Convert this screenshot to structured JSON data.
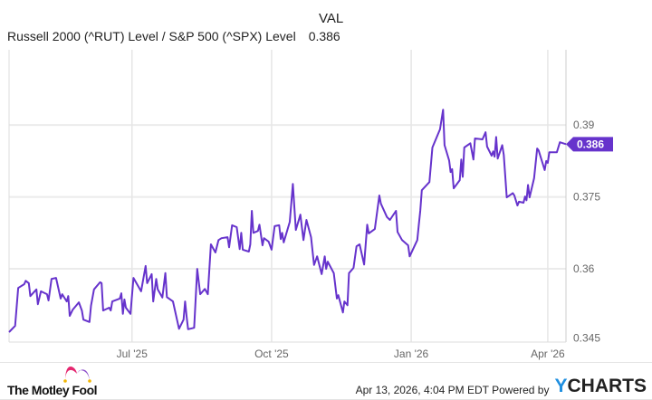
{
  "header": {
    "column_label": "VAL",
    "series_name": "Russell 2000 (^RUT) Level / S&P 500 (^SPX) Level",
    "series_value": "0.386"
  },
  "footer": {
    "brand": "The Motley Fool",
    "timestamp": "Apr 13, 2026, 4:04 PM EDT",
    "powered_by": "Powered by",
    "ycharts_y": "Y",
    "ycharts_rest": "CHARTS"
  },
  "chart_data": {
    "type": "line",
    "title": "",
    "xlabel": "",
    "ylabel": "",
    "line_color": "#6633cc",
    "grid": true,
    "y_axis_side": "right",
    "xlim": [
      "2025-04-11",
      "2026-04-13"
    ],
    "ylim": [
      0.345,
      0.4057
    ],
    "x_ticks": [
      {
        "date": "2025-07-01",
        "label": "Jul '25"
      },
      {
        "date": "2025-10-01",
        "label": "Oct '25"
      },
      {
        "date": "2026-01-01",
        "label": "Jan '26"
      },
      {
        "date": "2026-04-01",
        "label": "Apr '26"
      }
    ],
    "y_ticks": [
      {
        "value": 0.345,
        "label": "0.345"
      },
      {
        "value": 0.36,
        "label": "0.36"
      },
      {
        "value": 0.375,
        "label": "0.375"
      },
      {
        "value": 0.39,
        "label": "0.39"
      }
    ],
    "last_value_label": "0.386",
    "series": [
      {
        "name": "Russell 2000 (^RUT) Level / S&P 500 (^SPX) Level",
        "points": [
          [
            "2025-04-11",
            0.3468
          ],
          [
            "2025-04-15",
            0.3481
          ],
          [
            "2025-04-17",
            0.356
          ],
          [
            "2025-04-21",
            0.3568
          ],
          [
            "2025-04-22",
            0.3575
          ],
          [
            "2025-04-24",
            0.357
          ],
          [
            "2025-04-25",
            0.3543
          ],
          [
            "2025-04-29",
            0.3557
          ],
          [
            "2025-04-30",
            0.3526
          ],
          [
            "2025-05-02",
            0.3553
          ],
          [
            "2025-05-06",
            0.3547
          ],
          [
            "2025-05-07",
            0.3534
          ],
          [
            "2025-05-09",
            0.3579
          ],
          [
            "2025-05-12",
            0.3581
          ],
          [
            "2025-05-15",
            0.3538
          ],
          [
            "2025-05-16",
            0.3547
          ],
          [
            "2025-05-19",
            0.3532
          ],
          [
            "2025-05-20",
            0.3543
          ],
          [
            "2025-05-21",
            0.3502
          ],
          [
            "2025-05-23",
            0.3515
          ],
          [
            "2025-05-27",
            0.353
          ],
          [
            "2025-05-29",
            0.3513
          ],
          [
            "2025-05-30",
            0.3494
          ],
          [
            "2025-06-03",
            0.3489
          ],
          [
            "2025-06-04",
            0.3523
          ],
          [
            "2025-06-06",
            0.3557
          ],
          [
            "2025-06-10",
            0.3572
          ],
          [
            "2025-06-11",
            0.357
          ],
          [
            "2025-06-12",
            0.3513
          ],
          [
            "2025-06-16",
            0.3519
          ],
          [
            "2025-06-17",
            0.3513
          ],
          [
            "2025-06-18",
            0.3532
          ],
          [
            "2025-06-23",
            0.3538
          ],
          [
            "2025-06-24",
            0.3549
          ],
          [
            "2025-06-25",
            0.3506
          ],
          [
            "2025-06-26",
            0.3536
          ],
          [
            "2025-06-27",
            0.3519
          ],
          [
            "2025-06-30",
            0.3506
          ],
          [
            "2025-07-02",
            0.3581
          ],
          [
            "2025-07-07",
            0.3553
          ],
          [
            "2025-07-10",
            0.3606
          ],
          [
            "2025-07-11",
            0.357
          ],
          [
            "2025-07-14",
            0.3589
          ],
          [
            "2025-07-15",
            0.3532
          ],
          [
            "2025-07-17",
            0.3579
          ],
          [
            "2025-07-18",
            0.3557
          ],
          [
            "2025-07-21",
            0.354
          ],
          [
            "2025-07-23",
            0.3591
          ],
          [
            "2025-07-24",
            0.3541
          ],
          [
            "2025-07-28",
            0.3532
          ],
          [
            "2025-08-01",
            0.3475
          ],
          [
            "2025-08-04",
            0.3494
          ],
          [
            "2025-08-05",
            0.3532
          ],
          [
            "2025-08-06",
            0.35
          ],
          [
            "2025-08-07",
            0.3474
          ],
          [
            "2025-08-11",
            0.3477
          ],
          [
            "2025-08-13",
            0.36
          ],
          [
            "2025-08-15",
            0.3547
          ],
          [
            "2025-08-18",
            0.3558
          ],
          [
            "2025-08-20",
            0.3547
          ],
          [
            "2025-08-22",
            0.3651
          ],
          [
            "2025-08-25",
            0.3634
          ],
          [
            "2025-08-27",
            0.366
          ],
          [
            "2025-08-29",
            0.3664
          ],
          [
            "2025-09-02",
            0.3666
          ],
          [
            "2025-09-03",
            0.3645
          ],
          [
            "2025-09-05",
            0.3691
          ],
          [
            "2025-09-08",
            0.3687
          ],
          [
            "2025-09-10",
            0.3641
          ],
          [
            "2025-09-11",
            0.3675
          ],
          [
            "2025-09-12",
            0.364
          ],
          [
            "2025-09-16",
            0.3636
          ],
          [
            "2025-09-17",
            0.3651
          ],
          [
            "2025-09-18",
            0.3721
          ],
          [
            "2025-09-19",
            0.3675
          ],
          [
            "2025-09-22",
            0.3679
          ],
          [
            "2025-09-23",
            0.3692
          ],
          [
            "2025-09-25",
            0.3649
          ],
          [
            "2025-09-26",
            0.3664
          ],
          [
            "2025-09-29",
            0.3657
          ],
          [
            "2025-10-01",
            0.364
          ],
          [
            "2025-10-03",
            0.3689
          ],
          [
            "2025-10-06",
            0.3691
          ],
          [
            "2025-10-07",
            0.3662
          ],
          [
            "2025-10-08",
            0.3675
          ],
          [
            "2025-10-09",
            0.3655
          ],
          [
            "2025-10-13",
            0.3698
          ],
          [
            "2025-10-15",
            0.3777
          ],
          [
            "2025-10-17",
            0.3681
          ],
          [
            "2025-10-20",
            0.3713
          ],
          [
            "2025-10-22",
            0.366
          ],
          [
            "2025-10-24",
            0.3702
          ],
          [
            "2025-10-27",
            0.3666
          ],
          [
            "2025-10-29",
            0.3608
          ],
          [
            "2025-10-31",
            0.3626
          ],
          [
            "2025-11-03",
            0.3589
          ],
          [
            "2025-11-05",
            0.3626
          ],
          [
            "2025-11-06",
            0.36
          ],
          [
            "2025-11-07",
            0.3615
          ],
          [
            "2025-11-11",
            0.3591
          ],
          [
            "2025-11-13",
            0.3538
          ],
          [
            "2025-11-14",
            0.3545
          ],
          [
            "2025-11-17",
            0.3509
          ],
          [
            "2025-11-18",
            0.3532
          ],
          [
            "2025-11-20",
            0.3524
          ],
          [
            "2025-11-21",
            0.3591
          ],
          [
            "2025-11-24",
            0.3602
          ],
          [
            "2025-11-26",
            0.3647
          ],
          [
            "2025-11-28",
            0.3651
          ],
          [
            "2025-12-01",
            0.3609
          ],
          [
            "2025-12-03",
            0.3692
          ],
          [
            "2025-12-04",
            0.3674
          ],
          [
            "2025-12-08",
            0.3683
          ],
          [
            "2025-12-11",
            0.3753
          ],
          [
            "2025-12-12",
            0.3736
          ],
          [
            "2025-12-16",
            0.3708
          ],
          [
            "2025-12-18",
            0.3702
          ],
          [
            "2025-12-22",
            0.3721
          ],
          [
            "2025-12-23",
            0.3677
          ],
          [
            "2025-12-26",
            0.366
          ],
          [
            "2025-12-30",
            0.3649
          ],
          [
            "2025-12-31",
            0.3626
          ],
          [
            "2026-01-05",
            0.366
          ],
          [
            "2026-01-06",
            0.3692
          ],
          [
            "2026-01-07",
            0.3721
          ],
          [
            "2026-01-08",
            0.3764
          ],
          [
            "2026-01-13",
            0.3781
          ],
          [
            "2026-01-15",
            0.3853
          ],
          [
            "2026-01-20",
            0.3891
          ],
          [
            "2026-01-22",
            0.3932
          ],
          [
            "2026-01-23",
            0.3858
          ],
          [
            "2026-01-26",
            0.3826
          ],
          [
            "2026-01-27",
            0.3802
          ],
          [
            "2026-01-28",
            0.3808
          ],
          [
            "2026-01-29",
            0.3768
          ],
          [
            "2026-02-02",
            0.3785
          ],
          [
            "2026-02-03",
            0.3828
          ],
          [
            "2026-02-04",
            0.3792
          ],
          [
            "2026-02-05",
            0.3853
          ],
          [
            "2026-02-09",
            0.3862
          ],
          [
            "2026-02-11",
            0.3828
          ],
          [
            "2026-02-12",
            0.3872
          ],
          [
            "2026-02-17",
            0.387
          ],
          [
            "2026-02-19",
            0.3885
          ],
          [
            "2026-02-20",
            0.3855
          ],
          [
            "2026-02-23",
            0.3836
          ],
          [
            "2026-02-24",
            0.3845
          ],
          [
            "2026-02-25",
            0.3834
          ],
          [
            "2026-02-26",
            0.3875
          ],
          [
            "2026-02-27",
            0.383
          ],
          [
            "2026-03-02",
            0.3858
          ],
          [
            "2026-03-03",
            0.3838
          ],
          [
            "2026-03-05",
            0.3749
          ],
          [
            "2026-03-09",
            0.3758
          ],
          [
            "2026-03-10",
            0.3753
          ],
          [
            "2026-03-12",
            0.3732
          ],
          [
            "2026-03-13",
            0.374
          ],
          [
            "2026-03-16",
            0.3738
          ],
          [
            "2026-03-17",
            0.3751
          ],
          [
            "2026-03-18",
            0.3743
          ],
          [
            "2026-03-19",
            0.3775
          ],
          [
            "2026-03-20",
            0.3749
          ],
          [
            "2026-03-23",
            0.3789
          ],
          [
            "2026-03-25",
            0.3851
          ],
          [
            "2026-03-26",
            0.3847
          ],
          [
            "2026-03-30",
            0.3806
          ],
          [
            "2026-03-31",
            0.3825
          ],
          [
            "2026-04-01",
            0.3821
          ],
          [
            "2026-04-02",
            0.3843
          ],
          [
            "2026-04-07",
            0.3843
          ],
          [
            "2026-04-09",
            0.3864
          ],
          [
            "2026-04-13",
            0.386
          ]
        ]
      }
    ]
  }
}
